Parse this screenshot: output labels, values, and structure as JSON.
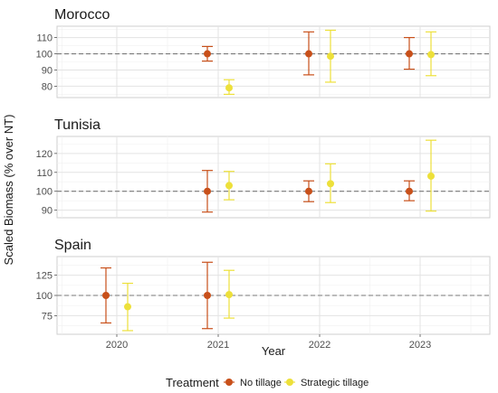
{
  "chart_data": {
    "type": "scatter",
    "subtype": "point-with-errorbars, faceted by country",
    "xlabel": "Year",
    "ylabel": "Scaled Biomass (% over NT)",
    "x_ticks": [
      "2020",
      "2021",
      "2022",
      "2023"
    ],
    "reference_line": {
      "y": 100,
      "style": "dashed"
    },
    "legend": {
      "title": "Treatment",
      "position": "bottom",
      "entries": [
        {
          "name": "No tillage",
          "color": "#C8501A"
        },
        {
          "name": "Strategic tillage",
          "color": "#EDE03A"
        }
      ]
    },
    "grid": true,
    "panels": [
      {
        "title": "Morocco",
        "ylim": [
          73,
          117
        ],
        "y_ticks": [
          80,
          90,
          100,
          110
        ],
        "series": [
          {
            "name": "No tillage",
            "points": [
              {
                "year": "2021",
                "y": 100,
                "lower": 95.5,
                "upper": 104.5
              },
              {
                "year": "2022",
                "y": 100,
                "lower": 87,
                "upper": 113.5
              },
              {
                "year": "2023",
                "y": 100,
                "lower": 90.5,
                "upper": 110
              }
            ]
          },
          {
            "name": "Strategic tillage",
            "points": [
              {
                "year": "2021",
                "y": 79,
                "lower": 75,
                "upper": 84
              },
              {
                "year": "2022",
                "y": 98.5,
                "lower": 82.5,
                "upper": 114.5
              },
              {
                "year": "2023",
                "y": 99.5,
                "lower": 86.5,
                "upper": 113.5
              }
            ]
          }
        ]
      },
      {
        "title": "Tunisia",
        "ylim": [
          86,
          129
        ],
        "y_ticks": [
          90,
          100,
          110,
          120
        ],
        "series": [
          {
            "name": "No tillage",
            "points": [
              {
                "year": "2021",
                "y": 100,
                "lower": 89,
                "upper": 111
              },
              {
                "year": "2022",
                "y": 100,
                "lower": 94.5,
                "upper": 105.5
              },
              {
                "year": "2023",
                "y": 100,
                "lower": 95,
                "upper": 105.5
              }
            ]
          },
          {
            "name": "Strategic tillage",
            "points": [
              {
                "year": "2021",
                "y": 103,
                "lower": 95.5,
                "upper": 110.5
              },
              {
                "year": "2022",
                "y": 104,
                "lower": 94,
                "upper": 114.5
              },
              {
                "year": "2023",
                "y": 108,
                "lower": 89.5,
                "upper": 127
              }
            ]
          }
        ]
      },
      {
        "title": "Spain",
        "ylim": [
          52,
          148
        ],
        "y_ticks": [
          75,
          100,
          125
        ],
        "series": [
          {
            "name": "No tillage",
            "points": [
              {
                "year": "2020",
                "y": 100,
                "lower": 66,
                "upper": 134
              },
              {
                "year": "2021",
                "y": 100,
                "lower": 59,
                "upper": 141
              }
            ]
          },
          {
            "name": "Strategic tillage",
            "points": [
              {
                "year": "2020",
                "y": 86,
                "lower": 56.5,
                "upper": 115
              },
              {
                "year": "2021",
                "y": 101,
                "lower": 72,
                "upper": 131
              }
            ]
          }
        ]
      }
    ]
  }
}
